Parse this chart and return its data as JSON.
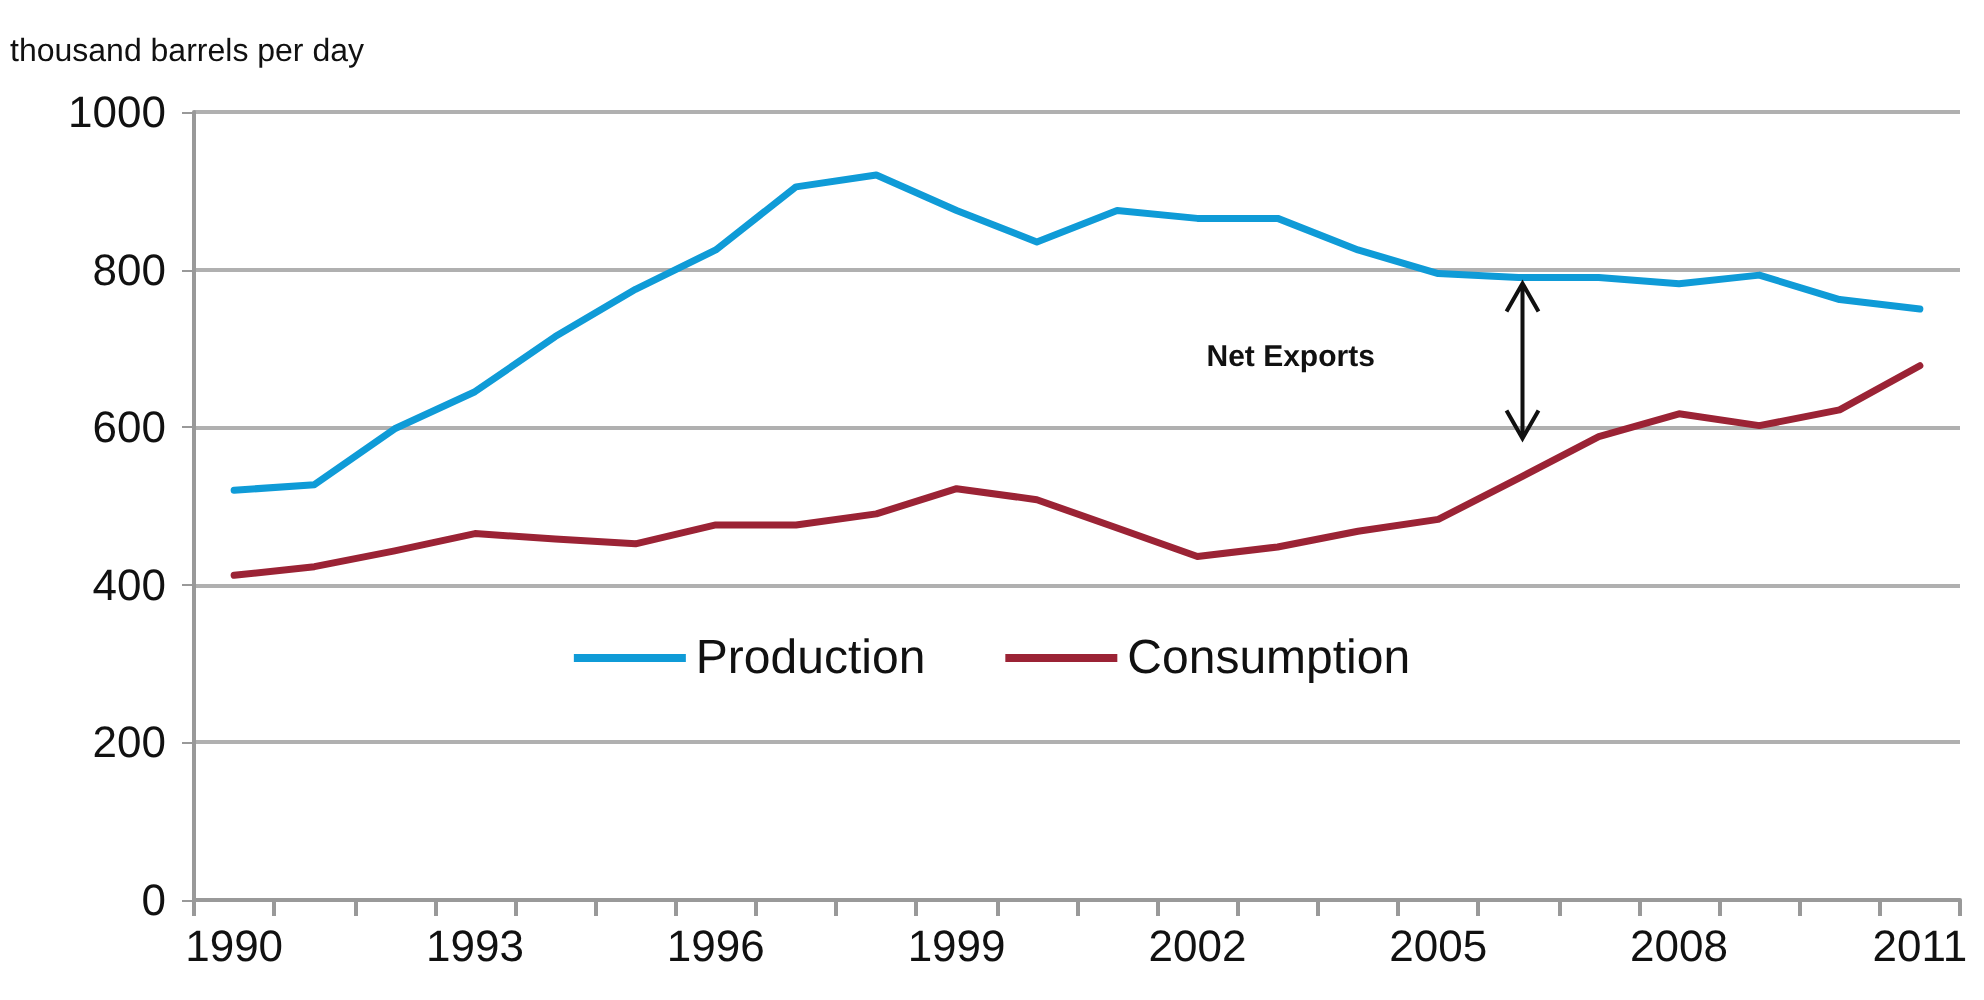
{
  "chart_data": {
    "type": "line",
    "ylabel": "thousand barrels per day",
    "categories": [
      "1990",
      null,
      null,
      "1993",
      null,
      null,
      "1996",
      null,
      null,
      "1999",
      null,
      null,
      "2002",
      null,
      null,
      "2005",
      null,
      null,
      "2008",
      null,
      null,
      "2011"
    ],
    "series": [
      {
        "name": "Production",
        "color": "#0f9bd7",
        "values": [
          520,
          527,
          598,
          645,
          715,
          775,
          825,
          905,
          920,
          875,
          835,
          875,
          865,
          865,
          825,
          795,
          790,
          790,
          782,
          793,
          762,
          750
        ]
      },
      {
        "name": "Consumption",
        "color": "#9b2335",
        "values": [
          412,
          423,
          443,
          465,
          458,
          452,
          476,
          476,
          490,
          522,
          508,
          472,
          436,
          448,
          468,
          483,
          535,
          588,
          617,
          602,
          622,
          678
        ]
      }
    ],
    "ylim": [
      0,
      1000
    ],
    "yticks": [
      0,
      200,
      400,
      600,
      800,
      1000
    ],
    "grid": "y",
    "legend": "bottom",
    "marker": "none",
    "line_style": "solid",
    "annotations": [
      "Net Exports"
    ]
  }
}
